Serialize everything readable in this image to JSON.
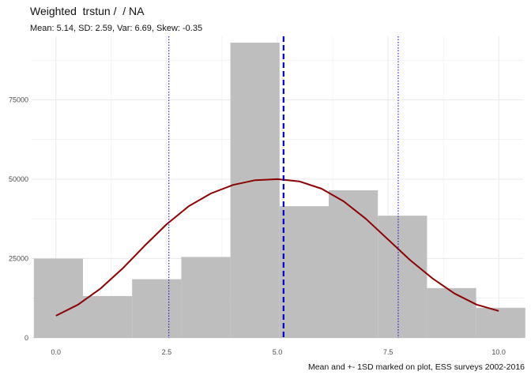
{
  "chart_data": {
    "type": "bar",
    "title": "Weighted  trstun /  / NA",
    "subtitle": "Mean: 5.14, SD: 2.59, Var: 6.69, Skew: -0.35",
    "caption": "Mean and +- 1SD marked on plot, ESS surveys 2002-2016",
    "xlabel": "",
    "ylabel": "",
    "xlim": [
      -0.55,
      10.55
    ],
    "ylim": [
      0,
      95000
    ],
    "x_ticks": [
      0,
      2.5,
      5,
      7.5,
      10
    ],
    "x_tick_labels": [
      "0.0",
      "2.5",
      "5.0",
      "7.5",
      "10.0"
    ],
    "y_ticks": [
      0,
      25000,
      50000,
      75000
    ],
    "y_tick_labels": [
      "0",
      "25000",
      "50000",
      "75000"
    ],
    "grid": true,
    "bins": [
      {
        "x0": -0.5,
        "x1": 0.61,
        "value": 25000
      },
      {
        "x0": 0.61,
        "x1": 1.72,
        "value": 13200
      },
      {
        "x0": 1.72,
        "x1": 2.83,
        "value": 18500
      },
      {
        "x0": 2.83,
        "x1": 3.94,
        "value": 25500
      },
      {
        "x0": 3.94,
        "x1": 5.05,
        "value": 93000
      },
      {
        "x0": 5.05,
        "x1": 6.16,
        "value": 41500
      },
      {
        "x0": 6.16,
        "x1": 7.27,
        "value": 46500
      },
      {
        "x0": 7.27,
        "x1": 8.38,
        "value": 38500
      },
      {
        "x0": 8.38,
        "x1": 9.49,
        "value": 15700
      },
      {
        "x0": 9.49,
        "x1": 10.6,
        "value": 9500
      }
    ],
    "density_curve": {
      "x": [
        0,
        0.5,
        1,
        1.5,
        2,
        2.5,
        3,
        3.5,
        4,
        4.5,
        5,
        5.5,
        6,
        6.5,
        7,
        7.5,
        8,
        8.5,
        9,
        9.5,
        10
      ],
      "y": [
        7000,
        10500,
        15500,
        21800,
        29000,
        35800,
        41500,
        45500,
        48200,
        49700,
        50000,
        49300,
        47000,
        43000,
        37500,
        31000,
        24500,
        18800,
        14000,
        10500,
        8500
      ]
    },
    "mean_line": 5.14,
    "sd_lines": [
      2.55,
      7.73
    ],
    "colors": {
      "bars": "#bebebe",
      "curve": "#8b0000",
      "mean_line": "#0000cd",
      "sd_lines": "#0000cd",
      "grid": "#ebebeb"
    }
  }
}
